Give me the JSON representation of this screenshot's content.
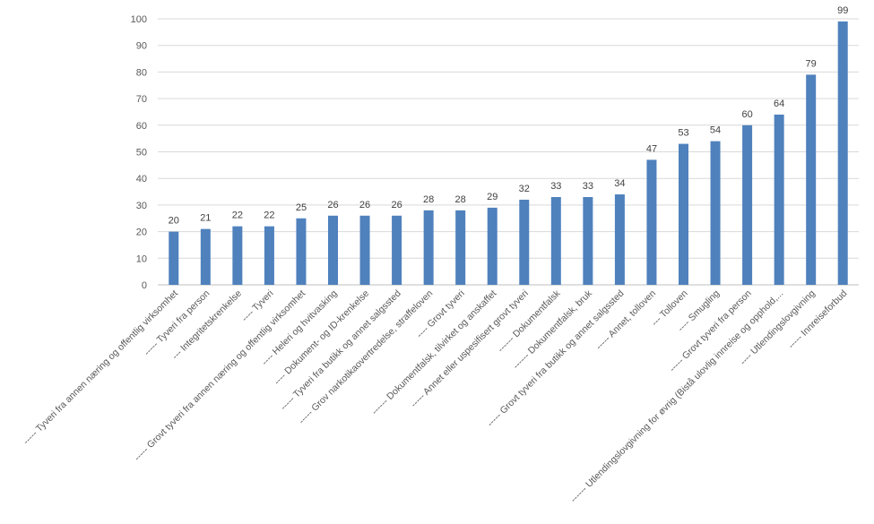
{
  "chart_data": {
    "type": "bar",
    "title": "",
    "xlabel": "",
    "ylabel": "",
    "ylim": [
      0,
      100
    ],
    "yticks": [
      0,
      10,
      20,
      30,
      40,
      50,
      60,
      70,
      80,
      90,
      100
    ],
    "grid": true,
    "legend": "none",
    "bar_color": "#4f81bd",
    "categories": [
      "----- Tyveri fra annen næring og offentlig virksomhet",
      "----- Tyveri fra person",
      "--- Integritetskrenkelse",
      "---- Tyveri",
      "----- Grovt tyveri fra annen næring og offentlig virksomhet",
      "---- Heleri og hvitvasking",
      "---- Dokument- og ID-krenkelse",
      "----- Tyveri fra butikk og annet salgssted",
      "----- Grov narkotikaovertredelse, straffeloven",
      "---- Grovt tyveri",
      "------ Dokumentfalsk, tilvirket og anskaffet",
      "----- Annet eller uspesifisert grovt tyveri",
      "------ Dokumentfalsk",
      "------ Dokumentfalsk, bruk",
      "----- Grovt tyveri fra butikk og annet salgssted",
      "----- Annet, tolloven",
      "--- Tolloven",
      "---- Smugling",
      "----- Grovt tyveri fra person",
      "------ Utlendingslovgivning for øvrig (Bistå ulovlig innreise og opphold,...",
      "---- Utlendingslovgivning",
      "----- Innreiseforbud"
    ],
    "values": [
      20,
      21,
      22,
      22,
      25,
      26,
      26,
      26,
      28,
      28,
      29,
      32,
      33,
      33,
      34,
      47,
      53,
      54,
      60,
      64,
      79,
      99
    ],
    "data_labels": [
      "20",
      "21",
      "22",
      "22",
      "25",
      "26",
      "26",
      "26",
      "28",
      "28",
      "29",
      "32",
      "33",
      "33",
      "34",
      "47",
      "53",
      "54",
      "60",
      "64",
      "79",
      "99"
    ]
  }
}
